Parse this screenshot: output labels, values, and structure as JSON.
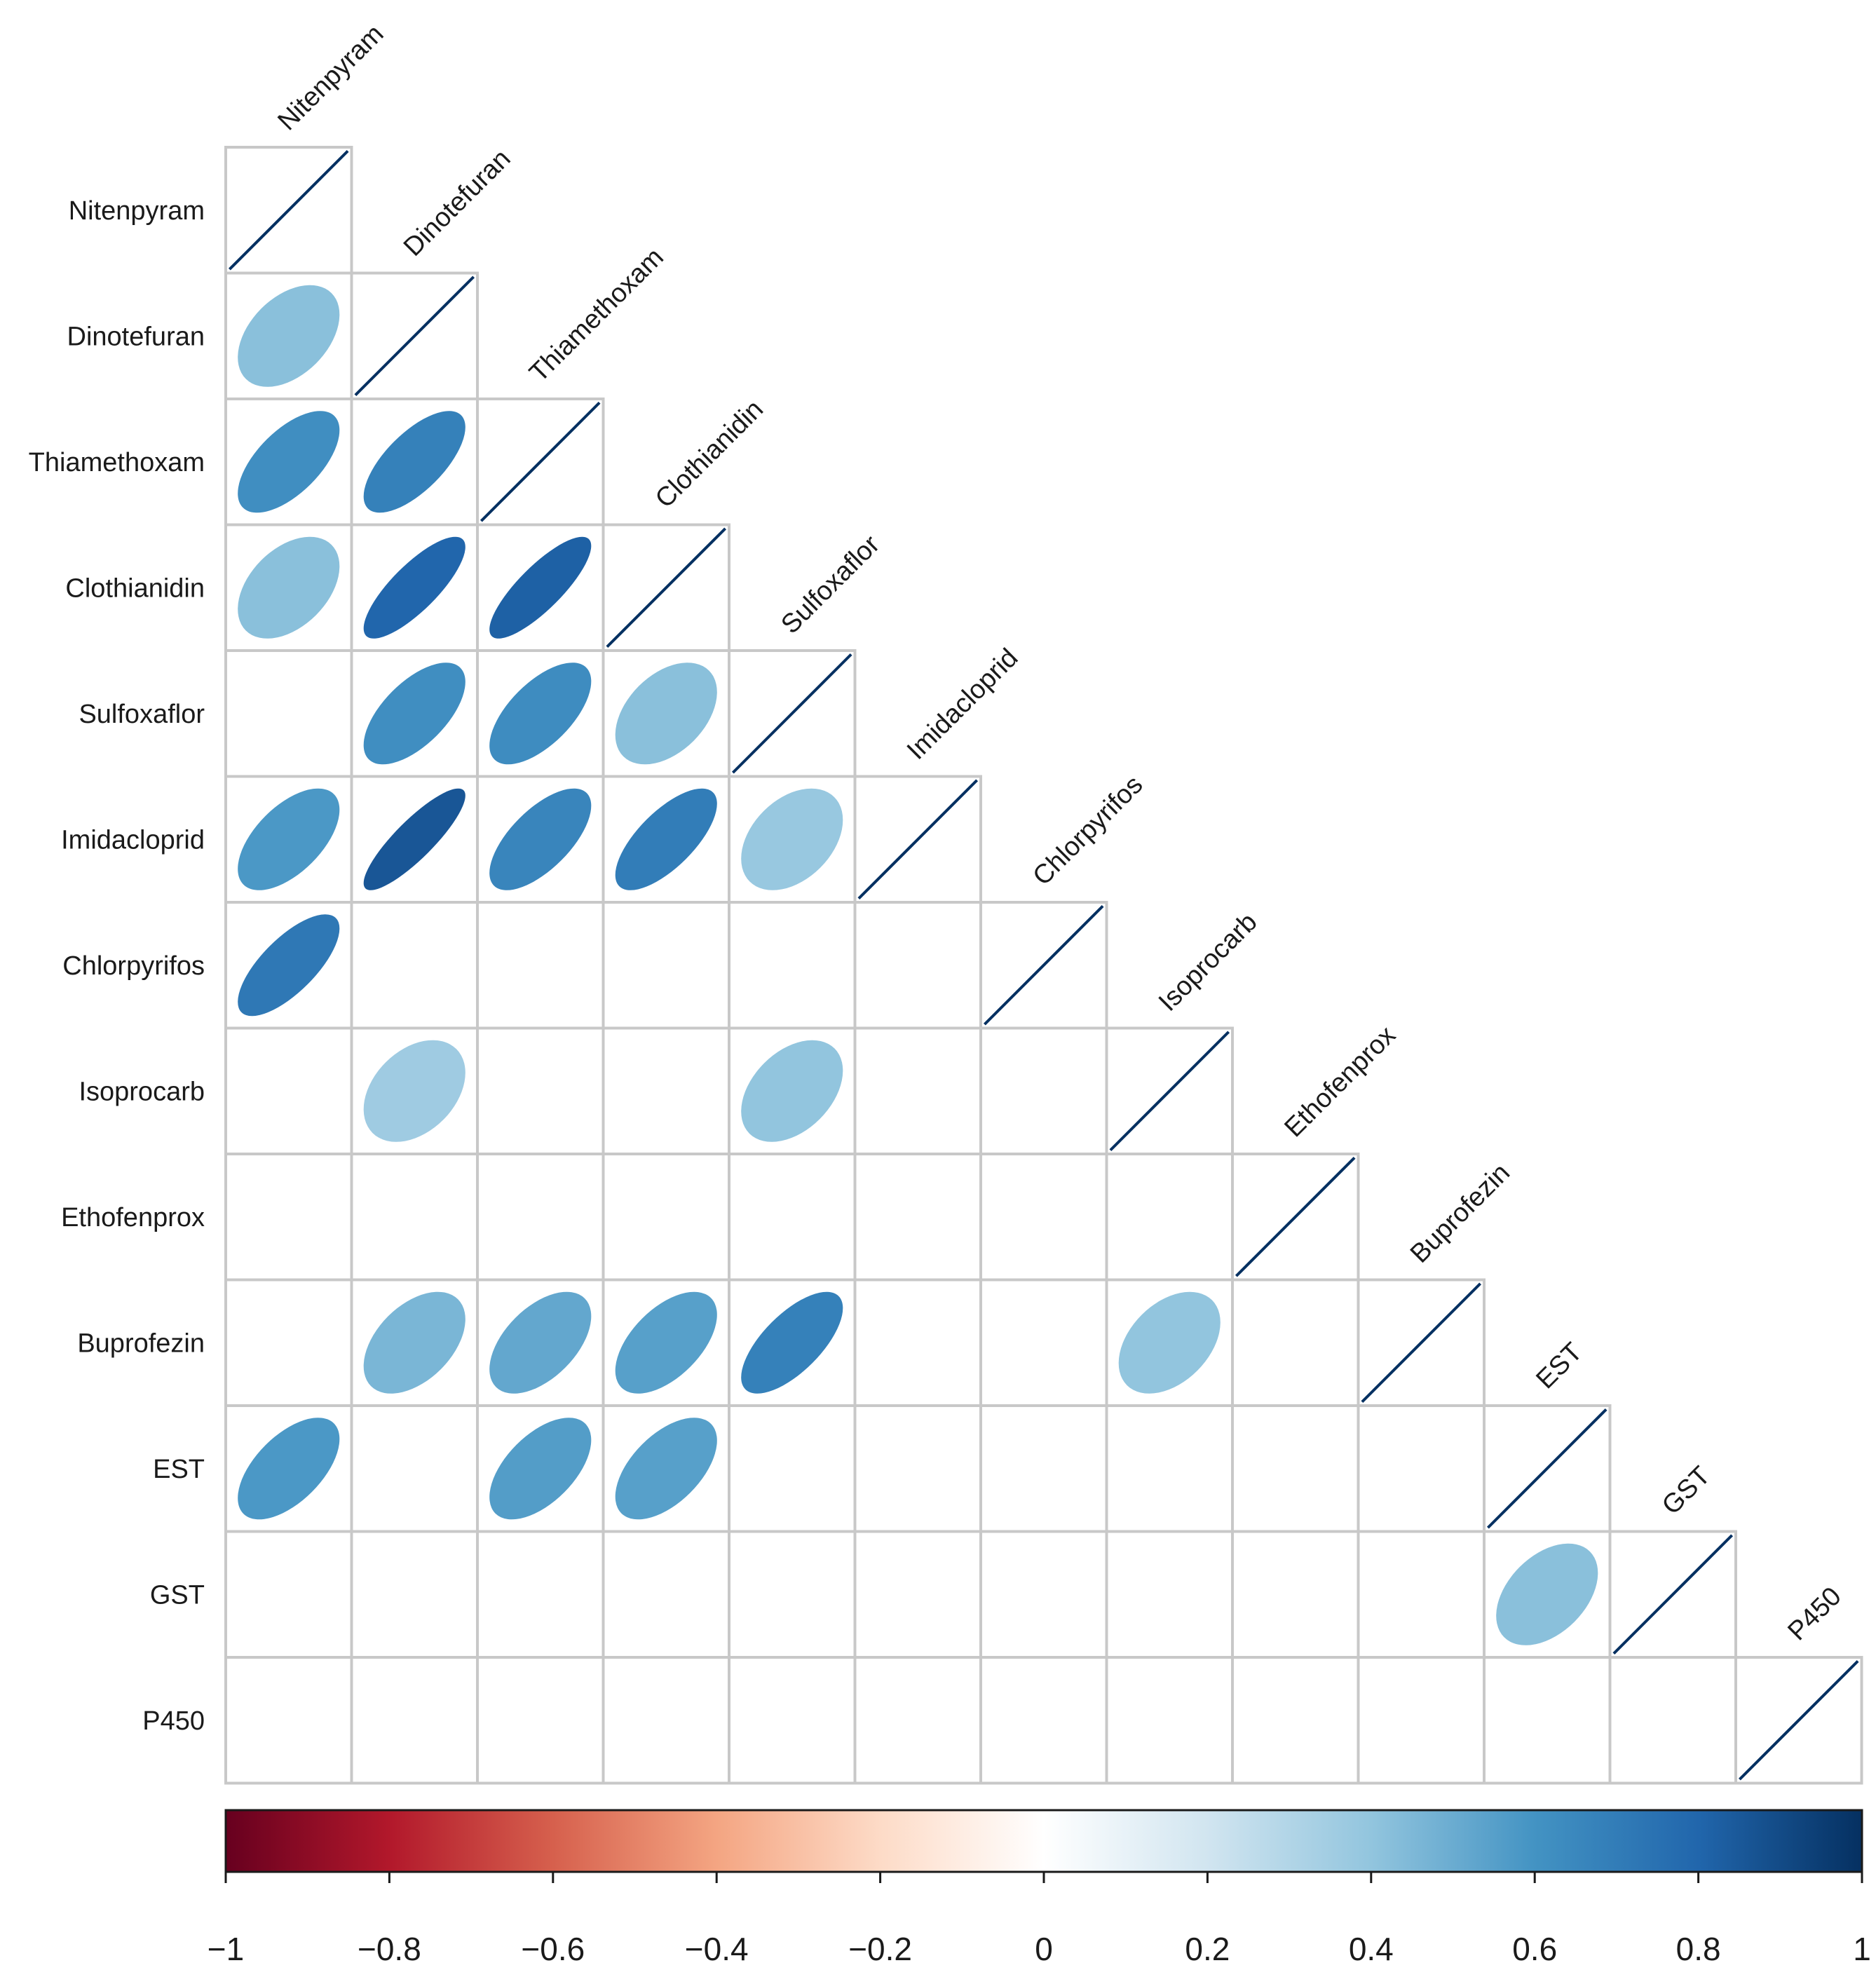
{
  "chart_data": {
    "type": "heatmap",
    "subtype": "correlation-matrix-lower-triangle-ellipse",
    "variables": [
      "Nitenpyram",
      "Dinotefuran",
      "Thiamethoxam",
      "Clothianidin",
      "Sulfoxaflor",
      "Imidacloprid",
      "Chlorpyrifos",
      "Isoprocarb",
      "Ethofenprox",
      "Buprofezin",
      "EST",
      "GST",
      "P450"
    ],
    "matrix": [
      [
        1.0,
        null,
        null,
        null,
        null,
        null,
        null,
        null,
        null,
        null,
        null,
        null,
        null
      ],
      [
        0.42,
        1.0,
        null,
        null,
        null,
        null,
        null,
        null,
        null,
        null,
        null,
        null,
        null
      ],
      [
        0.62,
        0.68,
        1.0,
        null,
        null,
        null,
        null,
        null,
        null,
        null,
        null,
        null,
        null
      ],
      [
        0.42,
        0.8,
        0.82,
        1.0,
        null,
        null,
        null,
        null,
        null,
        null,
        null,
        null,
        null
      ],
      [
        null,
        0.62,
        0.63,
        0.42,
        1.0,
        null,
        null,
        null,
        null,
        null,
        null,
        null,
        null
      ],
      [
        0.58,
        0.86,
        0.66,
        0.7,
        0.38,
        1.0,
        null,
        null,
        null,
        null,
        null,
        null,
        null
      ],
      [
        0.72,
        null,
        null,
        null,
        null,
        null,
        1.0,
        null,
        null,
        null,
        null,
        null,
        null
      ],
      [
        null,
        0.36,
        null,
        null,
        0.4,
        null,
        null,
        1.0,
        null,
        null,
        null,
        null,
        null
      ],
      [
        null,
        null,
        null,
        null,
        null,
        null,
        null,
        null,
        1.0,
        null,
        null,
        null,
        null
      ],
      [
        null,
        0.46,
        0.52,
        0.55,
        0.68,
        null,
        null,
        0.4,
        null,
        1.0,
        null,
        null,
        null
      ],
      [
        0.58,
        null,
        0.56,
        0.55,
        null,
        null,
        null,
        null,
        null,
        null,
        1.0,
        null,
        null
      ],
      [
        null,
        null,
        null,
        null,
        null,
        null,
        null,
        null,
        null,
        null,
        0.42,
        1.0,
        null
      ],
      [
        null,
        null,
        null,
        null,
        null,
        null,
        null,
        null,
        null,
        null,
        null,
        null,
        1.0
      ]
    ],
    "colorbar": {
      "min": -1,
      "max": 1,
      "ticks": [
        -1,
        -0.8,
        -0.6,
        -0.4,
        -0.2,
        0,
        0.2,
        0.4,
        0.6,
        0.8,
        1
      ],
      "tick_labels": [
        "−1",
        "−0.8",
        "−0.6",
        "−0.4",
        "−0.2",
        "0",
        "0.2",
        "0.4",
        "0.6",
        "0.8",
        "1"
      ],
      "colors": [
        "#67001F",
        "#B2182B",
        "#D6604D",
        "#F4A582",
        "#FDDBC7",
        "#FFFFFF",
        "#D1E5F0",
        "#92C5DE",
        "#4393C3",
        "#2166AC",
        "#053061"
      ],
      "placement": "bottom"
    },
    "colors": {
      "grid": "#C8C8C8",
      "positive_high": "#053061",
      "diagonal_line": "#053061"
    }
  }
}
